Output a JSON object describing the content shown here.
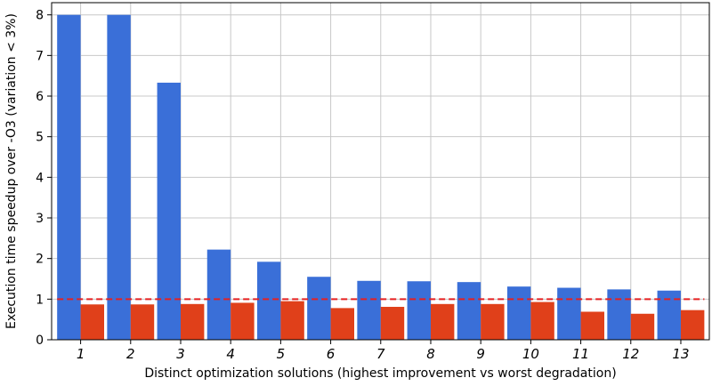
{
  "chart_data": {
    "type": "bar",
    "title": "",
    "xlabel": "Distinct optimization solutions (highest improvement vs worst degradation)",
    "ylabel": "Execution time speedup over -O3 (variation < 3%)",
    "categories": [
      "1",
      "2",
      "3",
      "4",
      "5",
      "6",
      "7",
      "8",
      "9",
      "10",
      "11",
      "12",
      "13"
    ],
    "series": [
      {
        "color": "#3a6fd8",
        "values": [
          8.0,
          8.0,
          6.33,
          2.22,
          1.92,
          1.55,
          1.45,
          1.44,
          1.42,
          1.31,
          1.28,
          1.24,
          1.21
        ]
      },
      {
        "color": "#e0401a",
        "values": [
          0.87,
          0.87,
          0.88,
          0.91,
          0.95,
          0.78,
          0.81,
          0.88,
          0.88,
          0.93,
          0.69,
          0.64,
          0.73
        ]
      }
    ],
    "reference_line": {
      "value": 1.0,
      "color": "#e62020",
      "style": "dashed"
    },
    "ylim": [
      0,
      8.3
    ],
    "yticks": [
      0,
      1,
      2,
      3,
      4,
      5,
      6,
      7,
      8
    ],
    "grid": true,
    "legend": "none"
  }
}
